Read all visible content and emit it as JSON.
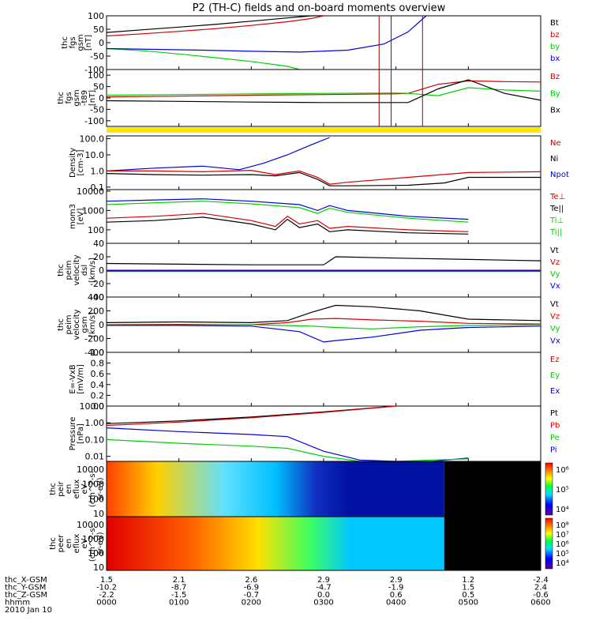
{
  "title": "P2 (TH-C) fields and on-board moments overview",
  "colors": {
    "black": "#000000",
    "red": "#d40000",
    "green": "#00d000",
    "blue": "#0000e0",
    "yellow": "#ffe600"
  },
  "chart_data": {
    "type": "line",
    "x_ticks": [
      "0000",
      "0100",
      "0200",
      "0300",
      "0400",
      "0500",
      "0600"
    ],
    "time_range": [
      "0000",
      "0600"
    ],
    "ephemeris": {
      "labels": [
        "thc_X-GSM",
        "thc_Y-GSM",
        "thc_Z-GSM",
        "hhmm",
        "2010 Jan 10"
      ],
      "rows": [
        [
          "1.5",
          "2.1",
          "2.6",
          "2.9",
          "2.9",
          "1.2",
          "-2.4"
        ],
        [
          "-10.2",
          "-8.7",
          "-6.9",
          "-4.7",
          "-1.9",
          "1.5",
          "2.4"
        ],
        [
          "-2.2",
          "-1.5",
          "-0.7",
          "0.0",
          "0.6",
          "0.5",
          "-0.6"
        ],
        [
          "0000",
          "0100",
          "0200",
          "0300",
          "0400",
          "0500",
          "0600"
        ]
      ]
    },
    "panels": [
      {
        "id": "fgs",
        "ylabel": [
          "thc",
          "fgs",
          "gsm",
          "[nT]"
        ],
        "yticks": [
          "100",
          "50",
          "0",
          "-50",
          "-100"
        ],
        "ylim": [
          -100,
          100
        ],
        "scale": "linear",
        "legend": [
          {
            "text": "Bt",
            "color": "#000000"
          },
          {
            "text": "bz",
            "color": "#d40000"
          },
          {
            "text": "by",
            "color": "#00d000"
          },
          {
            "text": "bx",
            "color": "#0000e0"
          }
        ],
        "series": [
          {
            "name": "Bt",
            "color": "#000000",
            "x": [
              0,
              30,
              60,
              90,
              120,
              150,
              170,
              180
            ],
            "y": [
              38,
              48,
              58,
              68,
              80,
              92,
              100,
              105
            ]
          },
          {
            "name": "bz",
            "color": "#d40000",
            "x": [
              0,
              30,
              60,
              90,
              120,
              150,
              170,
              180
            ],
            "y": [
              25,
              33,
              42,
              52,
              64,
              78,
              90,
              100
            ]
          },
          {
            "name": "by",
            "color": "#00d000",
            "x": [
              0,
              30,
              60,
              90,
              120,
              150,
              160
            ],
            "y": [
              -22,
              -30,
              -42,
              -56,
              -70,
              -88,
              -100
            ]
          },
          {
            "name": "bx",
            "color": "#0000e0",
            "x": [
              0,
              40,
              80,
              120,
              160,
              200,
              230,
              250,
              265
            ],
            "y": [
              -22,
              -25,
              -28,
              -32,
              -35,
              -28,
              -5,
              40,
              100
            ]
          }
        ]
      },
      {
        "id": "fgs-t89",
        "ylabel": [
          "thc",
          "fgs",
          "gsm",
          "-t89",
          "[nT]"
        ],
        "yticks": [
          "100",
          "50",
          "0",
          "-50",
          "-100"
        ],
        "ylim": [
          -125,
          125
        ],
        "scale": "linear",
        "legend": [
          {
            "text": "Bz",
            "color": "#d40000"
          },
          {
            "text": "By",
            "color": "#00d000"
          },
          {
            "text": "Bx",
            "color": "#000000"
          }
        ],
        "series": [
          {
            "name": "Bz",
            "color": "#d40000",
            "x": [
              0,
              60,
              120,
              180,
              240,
              250,
              275,
              300,
              330,
              360
            ],
            "y": [
              5,
              8,
              12,
              15,
              18,
              20,
              60,
              75,
              72,
              70
            ]
          },
          {
            "name": "By",
            "color": "#00d000",
            "x": [
              0,
              60,
              120,
              180,
              240,
              250,
              275,
              300,
              330,
              360
            ],
            "y": [
              12,
              15,
              18,
              20,
              22,
              20,
              10,
              45,
              35,
              30
            ]
          },
          {
            "name": "Bx",
            "color": "#000000",
            "x": [
              0,
              60,
              120,
              180,
              240,
              250,
              275,
              300,
              330,
              360
            ],
            "y": [
              -12,
              -15,
              -18,
              -20,
              -20,
              -20,
              40,
              80,
              20,
              -10
            ]
          }
        ]
      },
      {
        "id": "density",
        "ylabel": [
          "Density",
          "[cm-3]"
        ],
        "yticks": [
          "100.0",
          "10.0",
          "1.0",
          "0.1"
        ],
        "ylim": [
          0.07,
          150
        ],
        "scale": "log",
        "legend": [
          {
            "text": "Ne",
            "color": "#d40000"
          },
          {
            "text": "Ni",
            "color": "#000000"
          },
          {
            "text": "Npot",
            "color": "#0000e0"
          }
        ],
        "series": [
          {
            "name": "Npot",
            "color": "#0000e0",
            "x": [
              0,
              40,
              80,
              110,
              130,
              150,
              165,
              175,
              185
            ],
            "y": [
              1.0,
              1.5,
              2.0,
              1.2,
              3.0,
              10.0,
              30.0,
              60.0,
              120.0
            ]
          },
          {
            "name": "Ne",
            "color": "#d40000",
            "x": [
              0,
              40,
              80,
              120,
              140,
              160,
              175,
              185,
              200,
              250,
              300,
              360
            ],
            "y": [
              1.0,
              1.0,
              0.9,
              1.1,
              0.6,
              1.0,
              0.4,
              0.15,
              0.2,
              0.4,
              0.8,
              0.9
            ]
          },
          {
            "name": "Ni",
            "color": "#000000",
            "x": [
              0,
              40,
              80,
              120,
              140,
              160,
              175,
              185,
              200,
              250,
              280,
              300,
              360
            ],
            "y": [
              0.7,
              0.6,
              0.55,
              0.6,
              0.5,
              0.8,
              0.3,
              0.12,
              0.12,
              0.13,
              0.18,
              0.4,
              0.4
            ]
          }
        ]
      },
      {
        "id": "temperature",
        "ylabel": [
          "mom3",
          "[eV]"
        ],
        "yticks": [
          "10000",
          "1000",
          "100"
        ],
        "ylim": [
          20,
          12000
        ],
        "scale": "log",
        "legend": [
          {
            "text": "Te⊥",
            "color": "#d40000"
          },
          {
            "text": "Te||",
            "color": "#000000"
          },
          {
            "text": "Ti⊥",
            "color": "#00d000"
          },
          {
            "text": "Ti||",
            "color": "#00d000"
          }
        ],
        "series": [
          {
            "name": "Ti",
            "color": "#0000e0",
            "x": [
              0,
              40,
              80,
              120,
              160,
              175,
              185,
              200,
              250,
              300
            ],
            "y": [
              3000,
              3500,
              4000,
              3000,
              2000,
              1000,
              1800,
              1000,
              500,
              350
            ]
          },
          {
            "name": "Ti||",
            "color": "#00d000",
            "x": [
              0,
              40,
              80,
              120,
              160,
              175,
              185,
              200,
              250,
              300
            ],
            "y": [
              2000,
              2500,
              3000,
              2200,
              1400,
              700,
              1300,
              800,
              400,
              250
            ]
          },
          {
            "name": "Te⊥",
            "color": "#d40000",
            "x": [
              0,
              40,
              80,
              120,
              140,
              150,
              160,
              175,
              185,
              200,
              250,
              300
            ],
            "y": [
              400,
              500,
              700,
              300,
              150,
              500,
              200,
              300,
              120,
              150,
              100,
              80
            ]
          },
          {
            "name": "Te||",
            "color": "#000000",
            "x": [
              0,
              40,
              80,
              120,
              140,
              150,
              160,
              175,
              185,
              200,
              250,
              300
            ],
            "y": [
              250,
              300,
              450,
              200,
              100,
              350,
              130,
              200,
              80,
              100,
              70,
              60
            ]
          }
        ]
      },
      {
        "id": "velocity-dsl",
        "ylabel": [
          "thc",
          "peim",
          "velocity",
          "dsl",
          "[km/s]"
        ],
        "yticks": [
          "40",
          "20",
          "0",
          "-20",
          "-40"
        ],
        "ylim": [
          -40,
          40
        ],
        "scale": "linear",
        "legend": [
          {
            "text": "Vt",
            "color": "#000000"
          },
          {
            "text": "Vz",
            "color": "#d40000"
          },
          {
            "text": "Vy",
            "color": "#00d000"
          },
          {
            "text": "Vx",
            "color": "#0000e0"
          }
        ],
        "series": [
          {
            "name": "Vt",
            "color": "#000000",
            "x": [
              0,
              60,
              120,
              180,
              190,
              240,
              300,
              360
            ],
            "y": [
              10,
              9,
              8,
              8,
              20,
              18,
              16,
              14
            ]
          },
          {
            "name": "Vz",
            "color": "#d40000",
            "x": [
              0,
              360
            ],
            "y": [
              0,
              0
            ]
          },
          {
            "name": "Vy",
            "color": "#00d000",
            "x": [
              0,
              360
            ],
            "y": [
              -2,
              -2
            ]
          },
          {
            "name": "Vx",
            "color": "#0000e0",
            "x": [
              0,
              360
            ],
            "y": [
              -1,
              -1
            ]
          }
        ]
      },
      {
        "id": "velocity-gsm",
        "ylabel": [
          "thc",
          "peim",
          "velocity",
          "gsm",
          "[km/s]"
        ],
        "yticks": [
          "400",
          "200",
          "0",
          "-200",
          "-400"
        ],
        "ylim": [
          -400,
          400
        ],
        "scale": "linear",
        "legend": [
          {
            "text": "Vt",
            "color": "#000000"
          },
          {
            "text": "Vz",
            "color": "#d40000"
          },
          {
            "text": "Vy",
            "color": "#00d000"
          },
          {
            "text": "Vx",
            "color": "#0000e0"
          }
        ],
        "series": [
          {
            "name": "Vt",
            "color": "#000000",
            "x": [
              0,
              60,
              120,
              150,
              170,
              190,
              220,
              260,
              300,
              360
            ],
            "y": [
              30,
              40,
              30,
              60,
              180,
              280,
              260,
              200,
              80,
              60
            ]
          },
          {
            "name": "Vz",
            "color": "#d40000",
            "x": [
              0,
              60,
              120,
              150,
              170,
              190,
              220,
              260,
              300,
              360
            ],
            "y": [
              0,
              5,
              0,
              30,
              80,
              90,
              70,
              50,
              20,
              10
            ]
          },
          {
            "name": "Vy",
            "color": "#00d000",
            "x": [
              0,
              60,
              120,
              170,
              190,
              220,
              260,
              300,
              360
            ],
            "y": [
              -5,
              -5,
              0,
              -20,
              -40,
              -60,
              -30,
              -10,
              0
            ]
          },
          {
            "name": "Vx",
            "color": "#0000e0",
            "x": [
              0,
              60,
              120,
              160,
              180,
              190,
              220,
              260,
              300,
              360
            ],
            "y": [
              -10,
              -10,
              -20,
              -100,
              -250,
              -230,
              -180,
              -80,
              -40,
              -20
            ]
          }
        ]
      },
      {
        "id": "efield",
        "ylabel": [
          "E=-VxB",
          "[mV/m]"
        ],
        "yticks": [
          "1.0",
          "0.8",
          "0.6",
          "0.4",
          "0.2",
          "0.0"
        ],
        "ylim": [
          0,
          1
        ],
        "scale": "linear",
        "legend": [
          {
            "text": "Ez",
            "color": "#d40000"
          },
          {
            "text": "Ey",
            "color": "#00d000"
          },
          {
            "text": "Ex",
            "color": "#0000e0"
          }
        ],
        "series": []
      },
      {
        "id": "pressure",
        "ylabel": [
          "Pressure",
          "[nPa]"
        ],
        "yticks": [
          "10.00",
          "1.00",
          "0.10",
          "0.01"
        ],
        "ylim": [
          0.005,
          10
        ],
        "scale": "log",
        "legend": [
          {
            "text": "Pt",
            "color": "#000000"
          },
          {
            "text": "Pb",
            "color": "#d40000"
          },
          {
            "text": "Pe",
            "color": "#00d000"
          },
          {
            "text": "Pi",
            "color": "#0000e0"
          }
        ],
        "series": [
          {
            "name": "Pt",
            "color": "#000000",
            "x": [
              0,
              60,
              120,
              180,
              240
            ],
            "y": [
              0.9,
              1.3,
              2.2,
              4.5,
              10
            ]
          },
          {
            "name": "Pb",
            "color": "#d40000",
            "x": [
              0,
              60,
              120,
              180,
              240
            ],
            "y": [
              0.7,
              1.1,
              2.0,
              4.2,
              10
            ]
          },
          {
            "name": "Pi",
            "color": "#0000e0",
            "x": [
              0,
              60,
              120,
              150,
              180,
              210,
              240,
              270,
              300
            ],
            "y": [
              0.5,
              0.3,
              0.2,
              0.15,
              0.02,
              0.006,
              0.005,
              0.004,
              0.008
            ]
          },
          {
            "name": "Pe",
            "color": "#00d000",
            "x": [
              0,
              60,
              120,
              150,
              180,
              210,
              240,
              270,
              300
            ],
            "y": [
              0.1,
              0.06,
              0.04,
              0.03,
              0.01,
              0.005,
              0.004,
              0.006,
              0.007
            ]
          }
        ]
      }
    ],
    "spectrograms": [
      {
        "id": "peir",
        "ylabel": [
          "thc",
          "peir",
          "en",
          "eflux",
          "eV",
          "(cm^2-s-",
          "sr-eV)"
        ],
        "yticks": [
          "10000",
          "1000",
          "100",
          "10"
        ],
        "colorbar_ticks": [
          "10⁶",
          "10⁵",
          "10⁴"
        ],
        "data_end": "0440"
      },
      {
        "id": "peer",
        "ylabel": [
          "thc",
          "peer",
          "en",
          "eflux",
          "eV",
          "(cm^2-s-",
          "sr-eV)"
        ],
        "yticks": [
          "10000",
          "1000",
          "100",
          "10"
        ],
        "colorbar_ticks": [
          "10⁸",
          "10⁷",
          "10⁶",
          "10⁵",
          "10⁴"
        ],
        "data_end": "0440"
      }
    ]
  }
}
